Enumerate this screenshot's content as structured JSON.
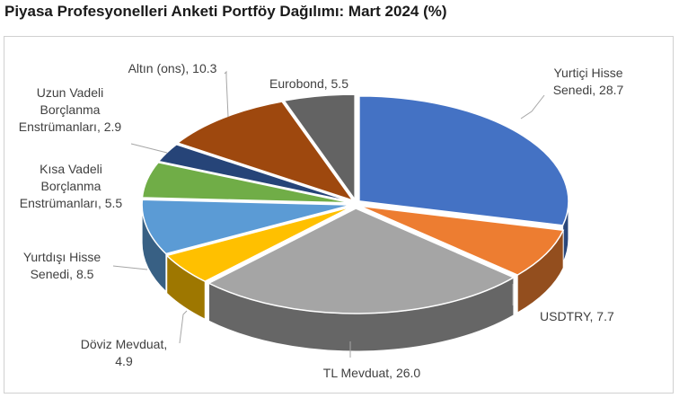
{
  "title": "Piyasa Profesyonelleri Anketi Portföy Dağılımı: Mart 2024 (%)",
  "chart_data": {
    "type": "pie",
    "title": "Piyasa Profesyonelleri Anketi Portföy Dağılımı: Mart 2024 (%)",
    "slices": [
      {
        "label": [
          "Yurtiçi Hisse",
          "Senedi, 28.7"
        ],
        "name": "Yurtiçi Hisse Senedi",
        "value": 28.7,
        "color": "#4472C4"
      },
      {
        "label": [
          "USDTRY, 7.7"
        ],
        "name": "USDTRY",
        "value": 7.7,
        "color": "#ED7D31"
      },
      {
        "label": [
          "TL Mevduat, 26.0"
        ],
        "name": "TL Mevduat",
        "value": 26.0,
        "color": "#A5A5A5"
      },
      {
        "label": [
          "Döviz Mevduat,",
          "4.9"
        ],
        "name": "Döviz Mevduat",
        "value": 4.9,
        "color": "#FFC000"
      },
      {
        "label": [
          "Yurtdışı Hisse",
          "Senedi, 8.5"
        ],
        "name": "Yurtdışı Hisse Senedi",
        "value": 8.5,
        "color": "#5B9BD5"
      },
      {
        "label": [
          "Kısa Vadeli",
          "Borçlanma",
          "Enstrümanları, 5.5"
        ],
        "name": "Kısa Vadeli Borçlanma Enstrümanları",
        "value": 5.5,
        "color": "#70AD47"
      },
      {
        "label": [
          "Uzun Vadeli",
          "Borçlanma",
          "Enstrümanları, 2.9"
        ],
        "name": "Uzun Vadeli Borçlanma Enstrümanları",
        "value": 2.9,
        "color": "#264478"
      },
      {
        "label": [
          "Altın (ons), 10.3"
        ],
        "name": "Altın (ons)",
        "value": 10.3,
        "color": "#9E480E"
      },
      {
        "label": [
          "Eurobond, 5.5"
        ],
        "name": "Eurobond",
        "value": 5.5,
        "color": "#636363"
      }
    ],
    "style": "3d-pie",
    "legend": "none",
    "unit": "%"
  }
}
